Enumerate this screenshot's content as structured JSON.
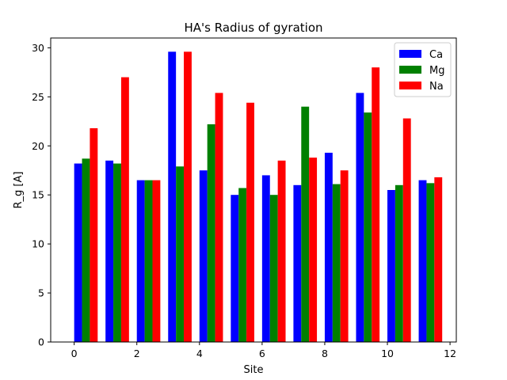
{
  "chart_data": {
    "type": "bar",
    "title": "HA's Radius of gyration",
    "xlabel": "Site",
    "ylabel": "R_g [A]",
    "x": [
      0,
      1,
      2,
      3,
      4,
      5,
      6,
      7,
      8,
      9,
      10,
      11
    ],
    "xlim": [
      -0.75,
      12.2
    ],
    "ylim": [
      0,
      31
    ],
    "xticks": [
      0,
      2,
      4,
      6,
      8,
      10,
      12
    ],
    "yticks": [
      0,
      5,
      10,
      15,
      20,
      25,
      30
    ],
    "legend_position": "top-right",
    "grid": false,
    "series": [
      {
        "name": "Ca",
        "color": "#0000ff",
        "values": [
          18.2,
          18.5,
          16.5,
          29.6,
          17.5,
          15.0,
          17.0,
          16.0,
          19.3,
          25.4,
          15.5,
          16.5
        ]
      },
      {
        "name": "Mg",
        "color": "#008000",
        "values": [
          18.7,
          18.2,
          16.5,
          17.9,
          22.2,
          15.7,
          15.0,
          24.0,
          16.1,
          23.4,
          16.0,
          16.2
        ]
      },
      {
        "name": "Na",
        "color": "#ff0000",
        "values": [
          21.8,
          27.0,
          16.5,
          29.6,
          25.4,
          24.4,
          18.5,
          18.8,
          17.5,
          28.0,
          22.8,
          16.8
        ]
      }
    ]
  }
}
